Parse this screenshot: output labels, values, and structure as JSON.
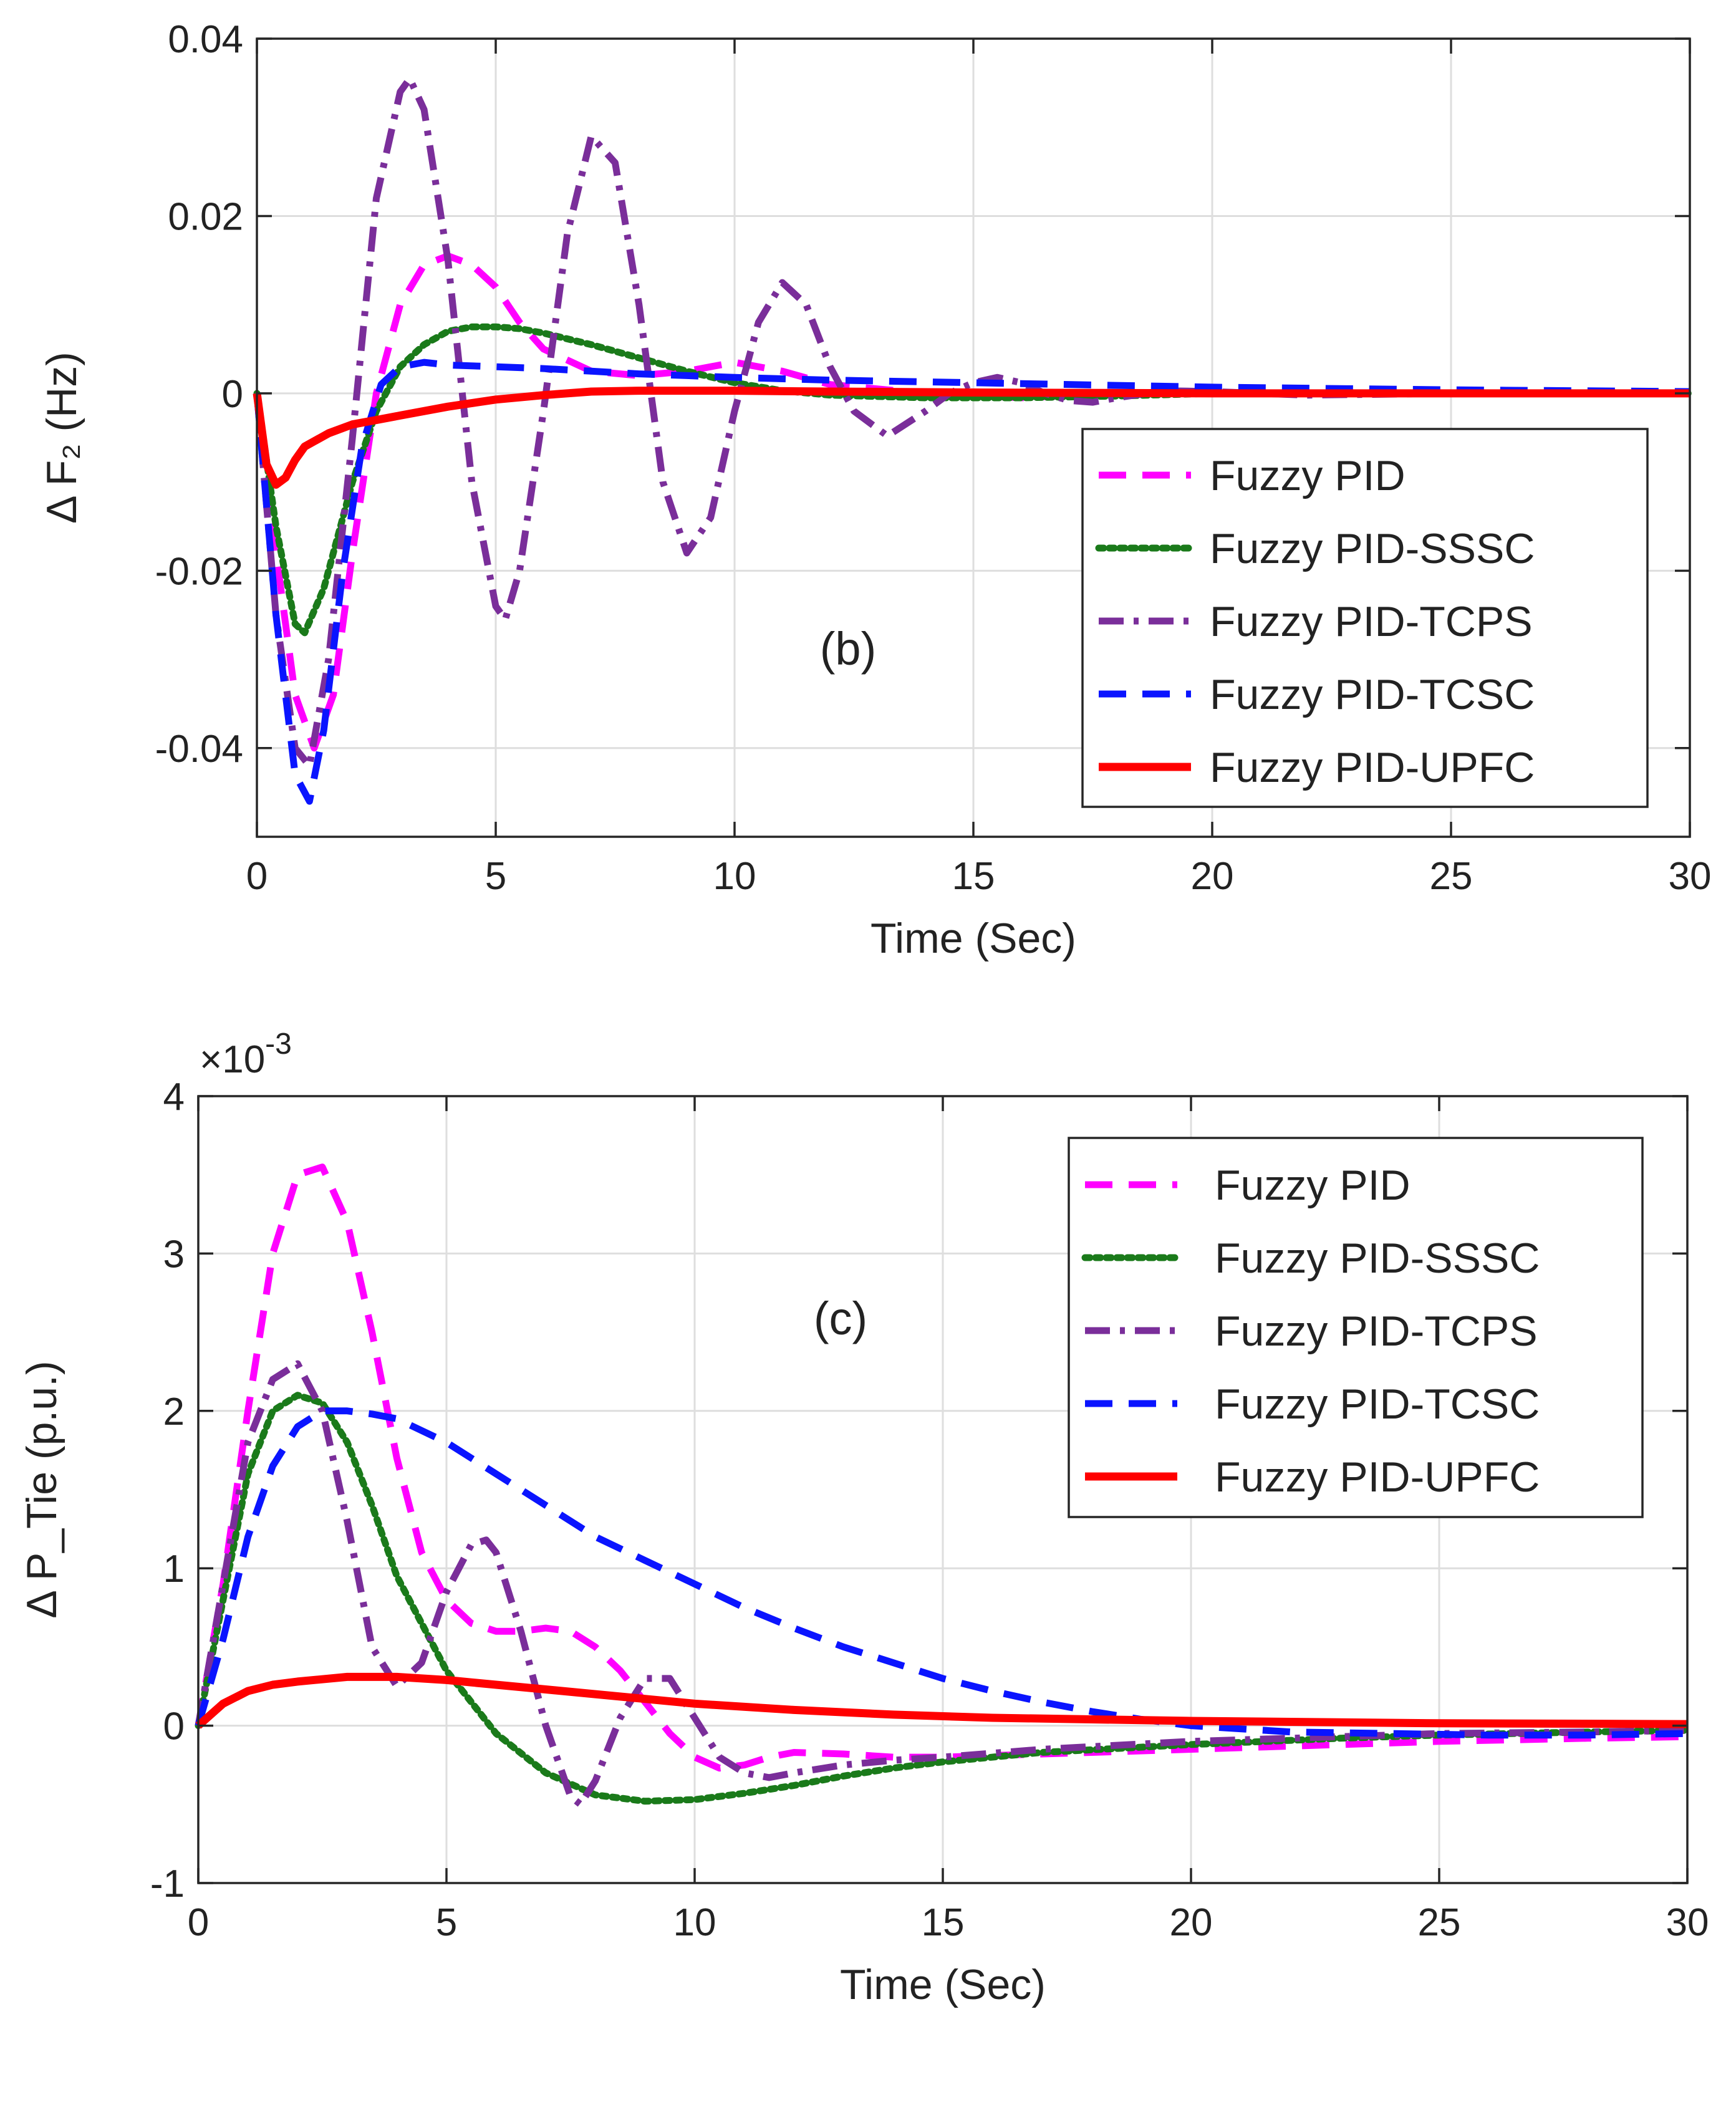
{
  "chart_data": [
    {
      "type": "line",
      "annotation": "(b)",
      "xlabel": "Time (Sec)",
      "ylabel": "Δ F₂ (Hz)",
      "xlim": [
        0,
        30
      ],
      "ylim": [
        -0.05,
        0.04
      ],
      "xticks": [
        0,
        5,
        10,
        15,
        20,
        25,
        30
      ],
      "yticks": [
        -0.04,
        -0.02,
        0,
        0.02,
        0.04
      ],
      "xtick_labels": [
        "0",
        "5",
        "10",
        "15",
        "20",
        "25",
        "30"
      ],
      "ytick_labels": [
        "-0.04",
        "-0.02",
        "0",
        "0.02",
        "0.04"
      ],
      "grid": true,
      "legend_position": "lower-right",
      "series": [
        {
          "name": "Fuzzy PID",
          "color": "#ff00ff",
          "style": "dashed",
          "x": [
            0,
            0.4,
            0.8,
            1.2,
            1.6,
            2.0,
            2.5,
            3.0,
            3.5,
            4.0,
            4.5,
            5.0,
            5.5,
            6.0,
            7.0,
            8.0,
            9.0,
            10.0,
            11.0,
            12.0,
            14.0,
            16.0,
            18.0,
            20.0,
            25.0,
            30.0
          ],
          "y": [
            0,
            -0.018,
            -0.034,
            -0.04,
            -0.034,
            -0.018,
            0.0,
            0.01,
            0.0145,
            0.0155,
            0.0145,
            0.012,
            0.008,
            0.005,
            0.0025,
            0.002,
            0.0025,
            0.0035,
            0.0025,
            0.001,
            0.0,
            -0.0005,
            0.0,
            0.0,
            0.0,
            0.0
          ]
        },
        {
          "name": "Fuzzy PID-SSSC",
          "color": "#1a7a1a",
          "style": "dotted",
          "x": [
            0,
            0.4,
            0.8,
            1.0,
            1.4,
            2.0,
            2.5,
            3.0,
            3.5,
            4.0,
            4.5,
            5.0,
            5.5,
            6.0,
            7.0,
            8.0,
            9.0,
            10.0,
            11.0,
            12.0,
            14.0,
            16.0,
            18.0,
            20.0,
            25.0,
            30.0
          ],
          "y": [
            0,
            -0.015,
            -0.026,
            -0.027,
            -0.022,
            -0.01,
            -0.002,
            0.003,
            0.0055,
            0.007,
            0.0075,
            0.0075,
            0.0073,
            0.0068,
            0.0055,
            0.004,
            0.0025,
            0.0012,
            0.0003,
            -0.0002,
            -0.0005,
            -0.0005,
            -0.0003,
            0.0,
            0.0,
            0.0
          ]
        },
        {
          "name": "Fuzzy PID-TCPS",
          "color": "#7a2e9a",
          "style": "dashdot",
          "x": [
            0,
            0.4,
            0.8,
            1.1,
            1.5,
            2.0,
            2.5,
            3.0,
            3.2,
            3.5,
            4.0,
            4.5,
            5.0,
            5.2,
            5.5,
            6.0,
            6.5,
            7.0,
            7.5,
            8.0,
            8.5,
            9.0,
            9.5,
            10.0,
            10.5,
            11.0,
            11.5,
            12.0,
            12.5,
            13.2,
            14.0,
            14.5,
            15.0,
            15.5,
            16.0,
            16.5,
            17.0,
            17.5,
            18.0,
            19.0,
            20.0,
            22.0,
            25.0,
            30.0
          ],
          "y": [
            0,
            -0.025,
            -0.04,
            -0.042,
            -0.03,
            -0.005,
            0.022,
            0.034,
            0.0355,
            0.032,
            0.015,
            -0.01,
            -0.024,
            -0.0255,
            -0.02,
            -0.002,
            0.018,
            0.029,
            0.026,
            0.01,
            -0.01,
            -0.018,
            -0.014,
            -0.002,
            0.008,
            0.0125,
            0.01,
            0.003,
            -0.002,
            -0.0048,
            -0.002,
            0.0,
            0.0012,
            0.0018,
            0.0012,
            0.0,
            -0.0008,
            -0.001,
            -0.0005,
            0.0003,
            0.0002,
            -0.0002,
            0.0,
            0.0
          ]
        },
        {
          "name": "Fuzzy PID-TCSC",
          "color": "#0a14ff",
          "style": "dashed",
          "x": [
            0,
            0.4,
            0.8,
            1.1,
            1.4,
            1.8,
            2.2,
            2.6,
            3.0,
            3.5,
            4.0,
            5.0,
            6.0,
            7.0,
            8.0,
            9.0,
            10.0,
            12.0,
            14.0,
            16.0,
            18.0,
            20.0,
            25.0,
            30.0
          ],
          "y": [
            0,
            -0.025,
            -0.043,
            -0.046,
            -0.038,
            -0.02,
            -0.006,
            0.001,
            0.003,
            0.0035,
            0.0032,
            0.003,
            0.0028,
            0.0025,
            0.0022,
            0.002,
            0.0018,
            0.0015,
            0.0013,
            0.0011,
            0.0009,
            0.0007,
            0.0004,
            0.0002
          ]
        },
        {
          "name": "Fuzzy PID-UPFC",
          "color": "#ff0000",
          "style": "solid",
          "x": [
            0,
            0.2,
            0.4,
            0.6,
            0.8,
            1.0,
            1.5,
            2.0,
            2.5,
            3.0,
            4.0,
            5.0,
            6.0,
            7.0,
            8.0,
            10.0,
            12.0,
            15.0,
            20.0,
            25.0,
            30.0
          ],
          "y": [
            0,
            -0.008,
            -0.0103,
            -0.0095,
            -0.0075,
            -0.006,
            -0.0045,
            -0.0035,
            -0.003,
            -0.0025,
            -0.0015,
            -0.0007,
            -0.0002,
            0.0002,
            0.0003,
            0.0003,
            0.0002,
            0.0001,
            0.0,
            0.0,
            0.0
          ]
        }
      ]
    },
    {
      "type": "line",
      "annotation": "(c)",
      "xlabel": "Time (Sec)",
      "ylabel": "Δ P_Tie (p.u.)",
      "exponent_label": "×10",
      "exponent_power": "-3",
      "xlim": [
        0,
        30
      ],
      "ylim": [
        -1,
        4
      ],
      "xticks": [
        0,
        5,
        10,
        15,
        20,
        25,
        30
      ],
      "yticks": [
        -1,
        0,
        1,
        2,
        3,
        4
      ],
      "xtick_labels": [
        "0",
        "5",
        "10",
        "15",
        "20",
        "25",
        "30"
      ],
      "ytick_labels": [
        "-1",
        "0",
        "1",
        "2",
        "3",
        "4"
      ],
      "grid": true,
      "legend_position": "top-right",
      "series": [
        {
          "name": "Fuzzy PID",
          "color": "#ff00ff",
          "style": "dashed",
          "x": [
            0,
            0.5,
            1.0,
            1.5,
            2.0,
            2.5,
            3.0,
            3.5,
            4.0,
            4.5,
            5.0,
            5.5,
            6.0,
            6.5,
            7.0,
            7.5,
            8.0,
            8.5,
            9.0,
            9.5,
            10.0,
            10.5,
            11.0,
            11.5,
            12.0,
            13.0,
            14.0,
            15.0,
            17.0,
            20.0,
            23.0,
            25.0,
            28.0,
            30.0
          ],
          "y": [
            0,
            0.9,
            2.0,
            3.0,
            3.5,
            3.55,
            3.2,
            2.5,
            1.7,
            1.1,
            0.8,
            0.65,
            0.6,
            0.6,
            0.62,
            0.6,
            0.5,
            0.35,
            0.15,
            -0.05,
            -0.2,
            -0.27,
            -0.25,
            -0.2,
            -0.17,
            -0.18,
            -0.2,
            -0.2,
            -0.18,
            -0.15,
            -0.12,
            -0.1,
            -0.08,
            -0.07
          ]
        },
        {
          "name": "Fuzzy PID-SSSC",
          "color": "#1a7a1a",
          "style": "dotted",
          "x": [
            0,
            0.5,
            1.0,
            1.5,
            2.0,
            2.5,
            3.0,
            3.5,
            4.0,
            5.0,
            6.0,
            7.0,
            8.0,
            9.0,
            10.0,
            11.0,
            12.0,
            13.0,
            14.0,
            15.0,
            17.0,
            20.0,
            23.0,
            25.0,
            28.0,
            30.0
          ],
          "y": [
            0,
            0.8,
            1.6,
            2.0,
            2.1,
            2.05,
            1.8,
            1.4,
            0.95,
            0.35,
            -0.05,
            -0.3,
            -0.44,
            -0.48,
            -0.47,
            -0.43,
            -0.38,
            -0.32,
            -0.27,
            -0.23,
            -0.17,
            -0.12,
            -0.08,
            -0.06,
            -0.04,
            -0.03
          ]
        },
        {
          "name": "Fuzzy PID-TCPS",
          "color": "#7a2e9a",
          "style": "dashdot",
          "x": [
            0,
            0.5,
            1.0,
            1.5,
            2.0,
            2.5,
            3.0,
            3.5,
            4.0,
            4.5,
            5.0,
            5.5,
            5.8,
            6.0,
            6.5,
            7.0,
            7.5,
            7.7,
            8.0,
            8.5,
            9.0,
            9.5,
            10.0,
            10.5,
            11.0,
            11.5,
            12.0,
            13.0,
            14.0,
            15.0,
            17.0,
            20.0,
            23.0,
            25.0,
            28.0,
            30.0
          ],
          "y": [
            0,
            0.9,
            1.8,
            2.2,
            2.3,
            2.0,
            1.3,
            0.5,
            0.25,
            0.4,
            0.85,
            1.15,
            1.18,
            1.1,
            0.6,
            0.0,
            -0.45,
            -0.5,
            -0.35,
            0.05,
            0.3,
            0.3,
            0.05,
            -0.2,
            -0.3,
            -0.33,
            -0.3,
            -0.25,
            -0.22,
            -0.2,
            -0.15,
            -0.1,
            -0.07,
            -0.05,
            -0.04,
            -0.03
          ]
        },
        {
          "name": "Fuzzy PID-TCSC",
          "color": "#0a14ff",
          "style": "dashed",
          "x": [
            0,
            0.5,
            1.0,
            1.5,
            2.0,
            2.5,
            3.0,
            3.5,
            4.0,
            5.0,
            6.0,
            7.0,
            8.0,
            9.0,
            10.0,
            11.0,
            12.0,
            13.0,
            14.0,
            15.0,
            16.0,
            17.0,
            18.0,
            19.0,
            20.0,
            22.0,
            24.0,
            26.0,
            28.0,
            30.0
          ],
          "y": [
            0,
            0.55,
            1.2,
            1.65,
            1.9,
            2.0,
            2.0,
            1.98,
            1.95,
            1.8,
            1.6,
            1.4,
            1.2,
            1.05,
            0.9,
            0.75,
            0.62,
            0.5,
            0.4,
            0.3,
            0.22,
            0.15,
            0.09,
            0.04,
            0.0,
            -0.04,
            -0.05,
            -0.06,
            -0.06,
            -0.05
          ]
        },
        {
          "name": "Fuzzy PID-UPFC",
          "color": "#ff0000",
          "style": "solid",
          "x": [
            0,
            0.5,
            1.0,
            1.5,
            2.0,
            3.0,
            4.0,
            5.0,
            6.0,
            7.0,
            8.0,
            9.0,
            10.0,
            12.0,
            14.0,
            16.0,
            18.0,
            20.0,
            25.0,
            30.0
          ],
          "y": [
            0,
            0.14,
            0.22,
            0.26,
            0.28,
            0.31,
            0.31,
            0.29,
            0.26,
            0.23,
            0.2,
            0.17,
            0.14,
            0.1,
            0.07,
            0.05,
            0.04,
            0.03,
            0.015,
            0.01
          ]
        }
      ]
    }
  ]
}
